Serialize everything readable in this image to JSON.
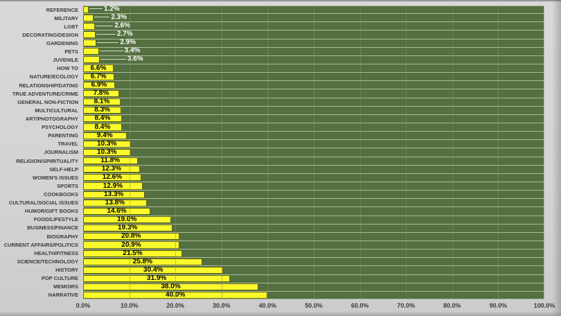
{
  "chart_data": {
    "type": "bar",
    "orientation": "horizontal",
    "categories": [
      "REFERENCE",
      "MILITARY",
      "LGBT",
      "DECORATING/DESIGN",
      "GARDENING",
      "PETS",
      "JUVENILE",
      "HOW TO",
      "NATURE/ECOLOGY",
      "RELATIONSHIP/DATING",
      "TRUE ADVENTURE/CRIME",
      "GENERAL NON-FICTION",
      "MULTICULTURAL",
      "ART/PHOTOGRAPHY",
      "PSYCHOLOGY",
      "PARENTING",
      "TRAVEL",
      "JOURNALISM",
      "RELIGION/SPIRITUALITY",
      "SELF-HELP",
      "WOMEN'S ISSUES",
      "SPORTS",
      "COOKBOOKS",
      "CULTURAL/SOCIAL ISSUES",
      "HUMOR/GIFT BOOKS",
      "FOOD/LIFESTYLE",
      "BUSINESS/FINANCE",
      "BIOGRAPHY",
      "CURRENT AFFAIRS/POLITICS",
      "HEALTH/FITNESS",
      "SCIENCE/TECHNOLOGY",
      "HISTORY",
      "POP CULTURE",
      "MEMOIRS",
      "NARRATIVE"
    ],
    "values": [
      1.2,
      2.3,
      2.6,
      2.7,
      2.9,
      3.4,
      3.6,
      6.6,
      6.7,
      6.9,
      7.8,
      8.1,
      8.3,
      8.4,
      8.4,
      9.4,
      10.3,
      10.3,
      11.8,
      12.3,
      12.6,
      12.9,
      13.3,
      13.8,
      14.6,
      19.0,
      19.3,
      20.8,
      20.9,
      21.5,
      25.8,
      30.4,
      31.9,
      38.0,
      40.0
    ],
    "value_labels": [
      "1.2%",
      "2.3%",
      "2.6%",
      "2.7%",
      "2.9%",
      "3.4%",
      "3.6%",
      "6.6%",
      "6.7%",
      "6.9%",
      "7.8%",
      "8.1%",
      "8.3%",
      "8.4%",
      "8.4%",
      "9.4%",
      "10.3%",
      "10.3%",
      "11.8%",
      "12.3%",
      "12.6%",
      "12.9%",
      "13.3%",
      "13.8%",
      "14.6%",
      "19.0%",
      "19.3%",
      "20.8%",
      "20.9%",
      "21.5%",
      "25.8%",
      "30.4%",
      "31.9%",
      "38.0%",
      "40.0%"
    ],
    "x_ticks": [
      "0.0%",
      "10.0%",
      "20.0%",
      "30.0%",
      "40.0%",
      "50.0%",
      "60.0%",
      "70.0%",
      "80.0%",
      "90.0%",
      "100.0%"
    ],
    "xlim": [
      0,
      100
    ],
    "grid": "vertical",
    "legend": "none",
    "label_placement": "inside-center; small values labeled outside in white with leader line",
    "inside_label_threshold": 5,
    "colors": {
      "plot_background": "#547041",
      "row_separator": "#adbb9b",
      "bar_fill": "#f9f92b",
      "bar_border": "#69690f",
      "gridline": "#859461",
      "inside_label_text": "#000000",
      "outside_label_text": "#ffffff",
      "leader_line": "#d6dccb",
      "axis_text": "#3a3a3a",
      "page_background": "#d3d3d3"
    }
  }
}
